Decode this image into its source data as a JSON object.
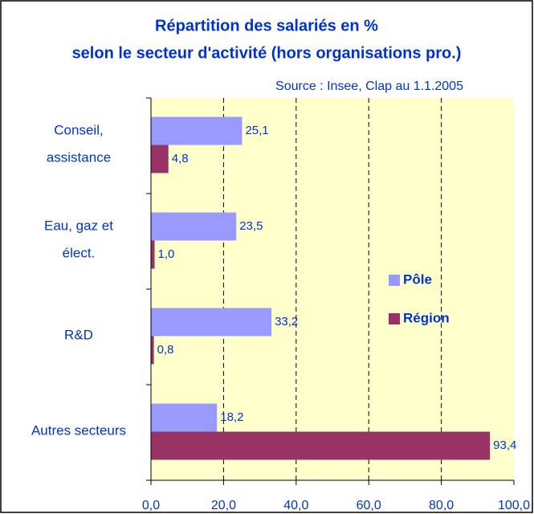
{
  "chart_data": {
    "type": "barh",
    "title": [
      "Répartition des salariés en %",
      "selon le secteur d'activité (hors organisations pro.)"
    ],
    "source": "Source : Insee, Clap au 1.1.2005",
    "categories": [
      "Conseil,\nassistance",
      "Eau, gaz et\nélect.",
      "R&D",
      "Autres secteurs"
    ],
    "series": [
      {
        "name": "Pôle",
        "color": "#9999ff",
        "values": [
          25.1,
          23.5,
          33.2,
          18.2
        ],
        "value_labels": [
          "25,1",
          "23,5",
          "33,2",
          "18,2"
        ]
      },
      {
        "name": "Région",
        "color": "#993366",
        "values": [
          4.8,
          1.0,
          0.8,
          93.4
        ],
        "value_labels": [
          "4,8",
          "1,0",
          "0,8",
          "93,4"
        ]
      }
    ],
    "xlim": [
      0,
      100
    ],
    "xticks": [
      {
        "value": 0,
        "label": "0,0"
      },
      {
        "value": 20,
        "label": "20,0"
      },
      {
        "value": 40,
        "label": "40,0"
      },
      {
        "value": 60,
        "label": "60,0"
      },
      {
        "value": 80,
        "label": "80,0"
      },
      {
        "value": 100,
        "label": "100,0"
      }
    ],
    "grid": true,
    "legend": "right"
  }
}
